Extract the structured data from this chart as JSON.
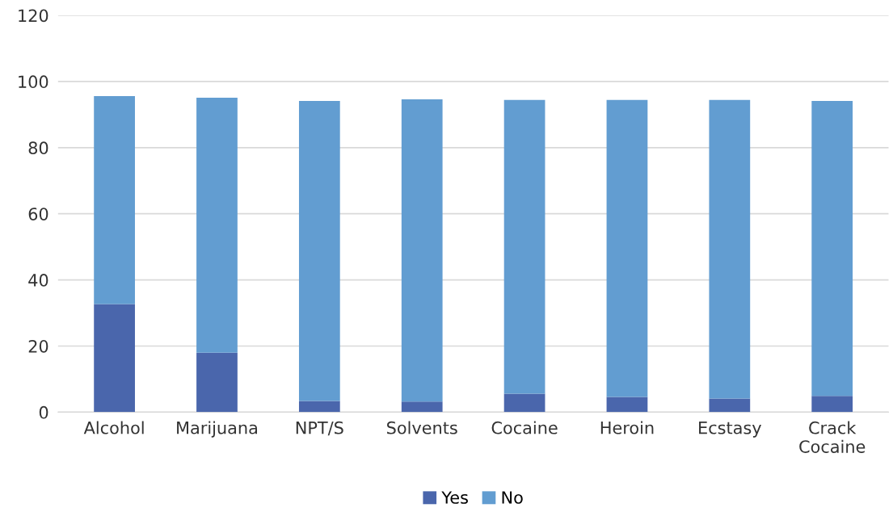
{
  "chart_data": {
    "type": "bar",
    "stacked": true,
    "categories": [
      "Alcohol",
      "Marijuana",
      "NPT/S",
      "Solvents",
      "Cocaine",
      "Heroin",
      "Ecstasy",
      "Crack\nCocaine"
    ],
    "series": [
      {
        "name": "Yes",
        "color": "#4a66ac",
        "values": [
          32.7,
          18.0,
          3.4,
          3.2,
          5.6,
          4.6,
          4.1,
          4.9
        ]
      },
      {
        "name": "No",
        "color": "#629dd1",
        "values": [
          62.9,
          77.1,
          90.7,
          91.4,
          88.8,
          89.8,
          90.3,
          89.2
        ]
      }
    ],
    "ylim": [
      0,
      120
    ],
    "yticks": [
      0,
      20,
      40,
      60,
      80,
      100,
      120
    ],
    "grid": "y",
    "legend": "bottom"
  }
}
